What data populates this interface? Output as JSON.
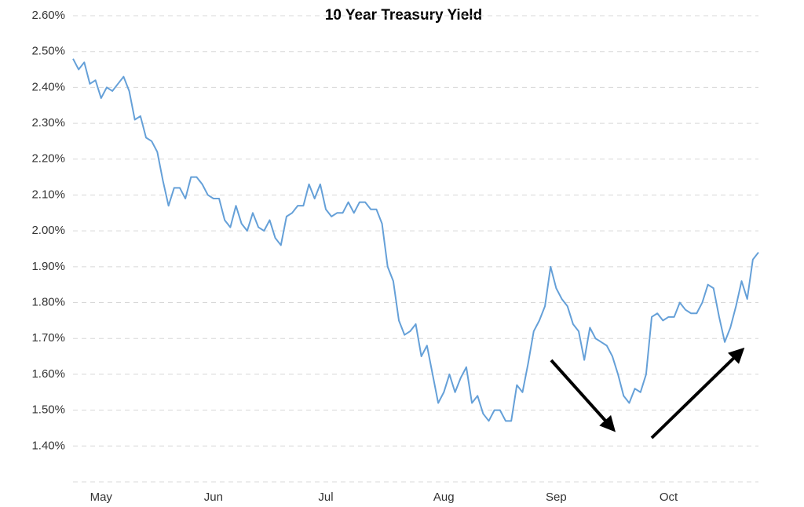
{
  "chart_data": {
    "type": "line",
    "title": "10 Year Treasury Yield",
    "color": "#65a0d8",
    "grid": true,
    "ylim": [
      1.3,
      2.6
    ],
    "yticks": [
      {
        "value": 1.4,
        "label": "1.40%"
      },
      {
        "value": 1.5,
        "label": "1.50%"
      },
      {
        "value": 1.6,
        "label": "1.60%"
      },
      {
        "value": 1.7,
        "label": "1.70%"
      },
      {
        "value": 1.8,
        "label": "1.80%"
      },
      {
        "value": 1.9,
        "label": "1.90%"
      },
      {
        "value": 2.0,
        "label": "2.00%"
      },
      {
        "value": 2.1,
        "label": "2.10%"
      },
      {
        "value": 2.2,
        "label": "2.20%"
      },
      {
        "value": 2.3,
        "label": "2.30%"
      },
      {
        "value": 2.4,
        "label": "2.40%"
      },
      {
        "value": 2.5,
        "label": "2.50%"
      },
      {
        "value": 2.6,
        "label": "2.60%"
      }
    ],
    "categories": [
      null,
      null,
      null,
      null,
      null,
      "May",
      null,
      null,
      null,
      null,
      null,
      null,
      null,
      null,
      null,
      null,
      null,
      null,
      null,
      null,
      null,
      null,
      null,
      null,
      null,
      "Jun",
      null,
      null,
      null,
      null,
      null,
      null,
      null,
      null,
      null,
      null,
      null,
      null,
      null,
      null,
      null,
      null,
      null,
      null,
      null,
      "Jul",
      null,
      null,
      null,
      null,
      null,
      null,
      null,
      null,
      null,
      null,
      null,
      null,
      null,
      null,
      null,
      null,
      null,
      null,
      null,
      null,
      "Aug",
      null,
      null,
      null,
      null,
      null,
      null,
      null,
      null,
      null,
      null,
      null,
      null,
      null,
      null,
      null,
      null,
      null,
      null,
      null,
      "Sep",
      null,
      null,
      null,
      null,
      null,
      null,
      null,
      null,
      null,
      null,
      null,
      null,
      null,
      null,
      null,
      null,
      null,
      null,
      null,
      "Oct",
      null,
      null,
      null,
      null,
      null,
      null,
      null,
      null,
      null,
      null,
      null,
      null,
      null,
      null,
      null,
      null
    ],
    "values": [
      2.48,
      2.45,
      2.47,
      2.41,
      2.42,
      2.37,
      2.4,
      2.39,
      2.41,
      2.43,
      2.39,
      2.31,
      2.32,
      2.26,
      2.25,
      2.22,
      2.14,
      2.07,
      2.12,
      2.12,
      2.09,
      2.15,
      2.15,
      2.13,
      2.1,
      2.09,
      2.09,
      2.03,
      2.01,
      2.07,
      2.02,
      2.0,
      2.05,
      2.01,
      2.0,
      2.03,
      1.98,
      1.96,
      2.04,
      2.05,
      2.07,
      2.07,
      2.13,
      2.09,
      2.13,
      2.06,
      2.04,
      2.05,
      2.05,
      2.08,
      2.05,
      2.08,
      2.08,
      2.06,
      2.06,
      2.02,
      1.9,
      1.86,
      1.75,
      1.71,
      1.72,
      1.74,
      1.65,
      1.68,
      1.6,
      1.52,
      1.55,
      1.6,
      1.55,
      1.59,
      1.62,
      1.52,
      1.54,
      1.49,
      1.47,
      1.5,
      1.5,
      1.47,
      1.47,
      1.57,
      1.55,
      1.63,
      1.72,
      1.75,
      1.79,
      1.9,
      1.84,
      1.81,
      1.79,
      1.74,
      1.72,
      1.64,
      1.73,
      1.7,
      1.69,
      1.68,
      1.65,
      1.6,
      1.54,
      1.52,
      1.56,
      1.55,
      1.6,
      1.76,
      1.77,
      1.75,
      1.76,
      1.76,
      1.8,
      1.78,
      1.77,
      1.77,
      1.8,
      1.85,
      1.84,
      1.76,
      1.69,
      1.73,
      1.79,
      1.86,
      1.81,
      1.92,
      1.94
    ]
  }
}
